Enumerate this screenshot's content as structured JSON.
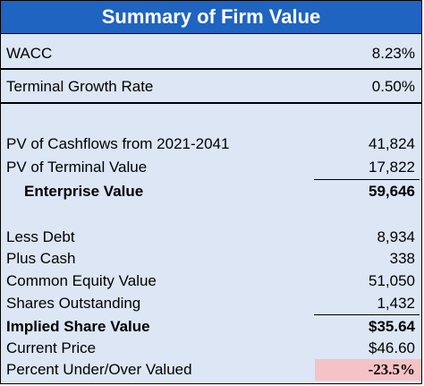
{
  "title": "Summary of Firm Value",
  "colors": {
    "header_bg": "#1f64c0",
    "table_bg": "#dce6f5",
    "highlight": "#f5c2c6"
  },
  "rows": {
    "wacc": {
      "label": "WACC",
      "value": "8.23%"
    },
    "tgr": {
      "label": "Terminal Growth Rate",
      "value": "0.50%"
    },
    "pv_cf": {
      "label": "PV of Cashflows from 2021-2041",
      "value": "41,824"
    },
    "pv_tv": {
      "label": "PV of Terminal Value",
      "value": "17,822"
    },
    "ev": {
      "label": "Enterprise Value",
      "value": "59,646"
    },
    "debt": {
      "label": "Less Debt",
      "value": "8,934"
    },
    "cash": {
      "label": "Plus Cash",
      "value": "338"
    },
    "equity": {
      "label": "Common Equity Value",
      "value": "51,050"
    },
    "shares": {
      "label": "Shares Outstanding",
      "value": "1,432"
    },
    "implied": {
      "label": "Implied Share Value",
      "value": "$35.64"
    },
    "price": {
      "label": "Current Price",
      "value": "$46.60"
    },
    "pct": {
      "label": "Percent Under/Over Valued",
      "value": "-23.5%"
    }
  }
}
